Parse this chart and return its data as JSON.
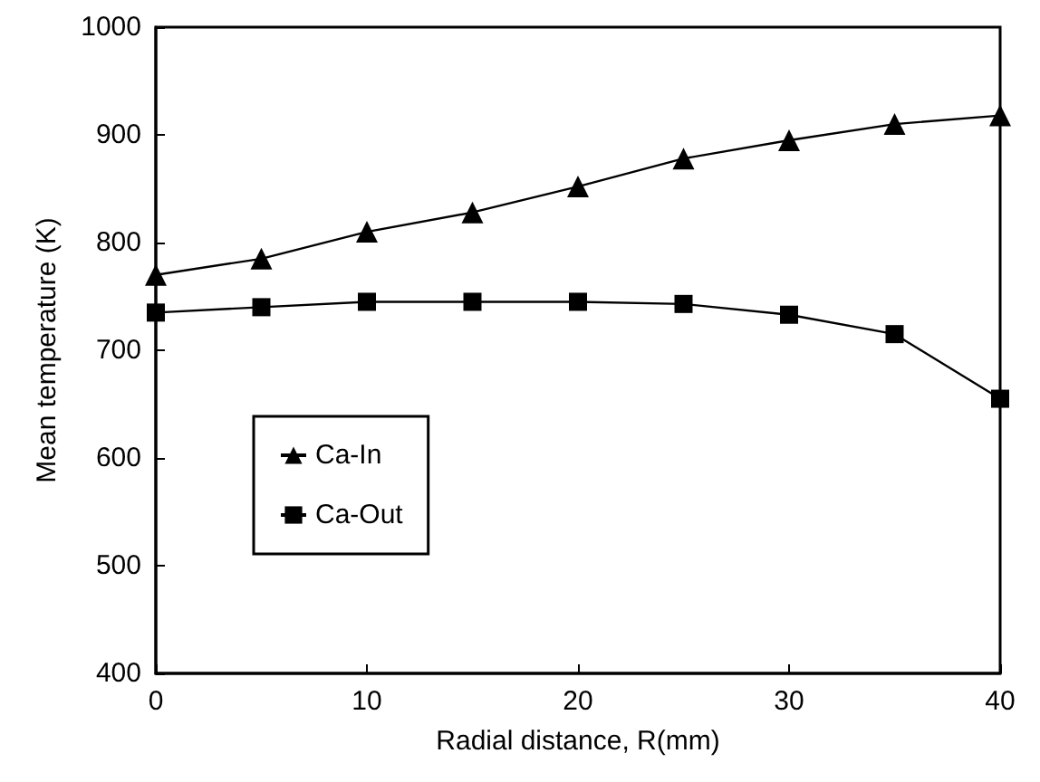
{
  "chart_data": {
    "type": "line",
    "xlabel": "Radial distance, R(mm)",
    "ylabel": "Mean temperature (K)",
    "x": [
      0,
      5,
      10,
      15,
      20,
      25,
      30,
      35,
      40
    ],
    "series": [
      {
        "name": "Ca-In",
        "color": "#000000",
        "marker": "triangle",
        "values": [
          770,
          785,
          810,
          828,
          852,
          878,
          895,
          910,
          918
        ]
      },
      {
        "name": "Ca-Out",
        "color": "#000000",
        "marker": "square",
        "values": [
          735,
          740,
          745,
          745,
          745,
          743,
          733,
          715,
          655
        ]
      }
    ],
    "xlim": [
      0,
      40
    ],
    "xticks": [
      0,
      10,
      20,
      30,
      40
    ],
    "ylim": [
      400,
      1000
    ],
    "yticks": [
      400,
      500,
      600,
      700,
      800,
      900,
      1000
    ],
    "grid": false,
    "legend": "left",
    "line_style": "solid"
  }
}
